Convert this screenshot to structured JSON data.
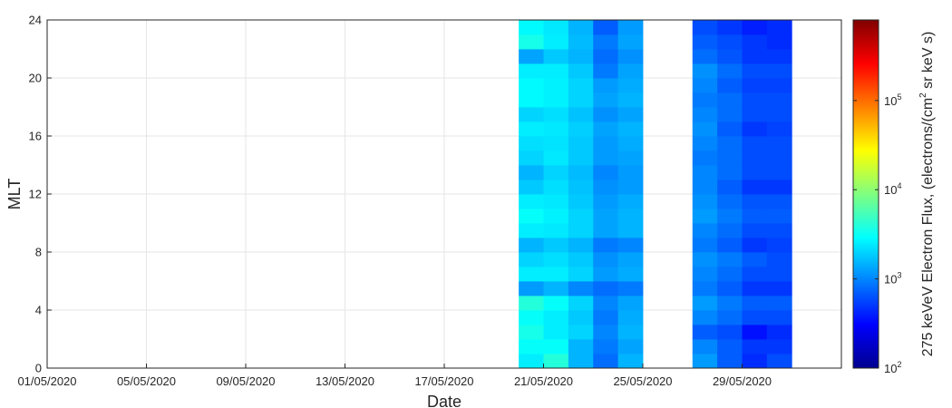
{
  "chart_data": {
    "type": "heatmap",
    "title": "",
    "xlabel": "Date",
    "ylabel": "MLT",
    "colorbar_label": "275 keVeV Electron Flux, (electrons/(cm",
    "colorbar_label_sup": "2",
    "colorbar_label_tail": " sr keV s)",
    "colormap": "jet",
    "color_scale": "log",
    "clim": [
      100,
      800000
    ],
    "grid": true,
    "x_tick_labels": [
      "01/05/2020",
      "05/05/2020",
      "09/05/2020",
      "13/05/2020",
      "17/05/2020",
      "21/05/2020",
      "25/05/2020",
      "29/05/2020"
    ],
    "x_tick_values": [
      "2020-05-01",
      "2020-05-05",
      "2020-05-09",
      "2020-05-13",
      "2020-05-17",
      "2020-05-21",
      "2020-05-25",
      "2020-05-29"
    ],
    "xlim": [
      "2020-05-01",
      "2020-06-02"
    ],
    "ylim": [
      0,
      24
    ],
    "y_ticks": [
      0,
      4,
      8,
      12,
      16,
      20,
      24
    ],
    "colorbar_ticks": [
      {
        "value": 100,
        "base": "10",
        "exp": "2"
      },
      {
        "value": 1000,
        "base": "10",
        "exp": "3"
      },
      {
        "value": 10000,
        "base": "10",
        "exp": "4"
      },
      {
        "value": 100000,
        "base": "10",
        "exp": "5"
      }
    ],
    "mlt_bin_hours": 1,
    "data_segments": [
      {
        "dates": [
          "2020-05-20",
          "2020-05-21",
          "2020-05-22",
          "2020-05-23",
          "2020-05-24"
        ],
        "flux_by_mlt": [
          [
            2500,
            4000,
            1500,
            800,
            1500
          ],
          [
            3000,
            3000,
            1500,
            900,
            1300
          ],
          [
            3500,
            2500,
            2000,
            1000,
            1500
          ],
          [
            3000,
            2500,
            1800,
            900,
            1400
          ],
          [
            4000,
            3000,
            2000,
            1000,
            1300
          ],
          [
            1200,
            1500,
            1000,
            800,
            900
          ],
          [
            2500,
            2500,
            2000,
            1200,
            1400
          ],
          [
            2000,
            2200,
            1800,
            1100,
            1300
          ],
          [
            1500,
            1800,
            1500,
            900,
            1000
          ],
          [
            2500,
            2400,
            2000,
            1300,
            1500
          ],
          [
            3000,
            2600,
            2000,
            1300,
            1500
          ],
          [
            2500,
            2400,
            1800,
            1200,
            1400
          ],
          [
            1800,
            2200,
            1700,
            1100,
            1200
          ],
          [
            1500,
            2000,
            1600,
            1000,
            1200
          ],
          [
            2000,
            2400,
            1800,
            1200,
            1300
          ],
          [
            2200,
            2300,
            1800,
            1200,
            1400
          ],
          [
            2500,
            2400,
            1900,
            1300,
            1500
          ],
          [
            2000,
            2200,
            1700,
            1100,
            1300
          ],
          [
            2800,
            2600,
            2000,
            1300,
            1500
          ],
          [
            2800,
            2600,
            2000,
            1200,
            1400
          ],
          [
            2500,
            2500,
            1800,
            900,
            1300
          ],
          [
            1300,
            1800,
            1500,
            800,
            1100
          ],
          [
            3500,
            2500,
            1600,
            900,
            1300
          ],
          [
            2800,
            2400,
            1500,
            700,
            1200
          ]
        ]
      },
      {
        "dates": [
          "2020-05-27",
          "2020-05-28",
          "2020-05-29",
          "2020-05-30"
        ],
        "flux_by_mlt": [
          [
            1200,
            700,
            450,
            600
          ],
          [
            1000,
            700,
            500,
            500
          ],
          [
            700,
            600,
            350,
            450
          ],
          [
            1000,
            800,
            600,
            600
          ],
          [
            1200,
            900,
            700,
            700
          ],
          [
            900,
            700,
            500,
            500
          ],
          [
            1000,
            800,
            600,
            600
          ],
          [
            1100,
            900,
            700,
            600
          ],
          [
            900,
            700,
            500,
            550
          ],
          [
            1000,
            800,
            600,
            600
          ],
          [
            1200,
            900,
            700,
            700
          ],
          [
            1100,
            800,
            650,
            650
          ],
          [
            1000,
            700,
            500,
            500
          ],
          [
            1000,
            800,
            600,
            600
          ],
          [
            900,
            800,
            600,
            600
          ],
          [
            1000,
            800,
            600,
            600
          ],
          [
            1100,
            700,
            500,
            550
          ],
          [
            1000,
            800,
            600,
            600
          ],
          [
            900,
            800,
            600,
            600
          ],
          [
            1000,
            700,
            550,
            550
          ],
          [
            1100,
            800,
            600,
            600
          ],
          [
            800,
            650,
            500,
            500
          ],
          [
            700,
            600,
            500,
            450
          ],
          [
            600,
            500,
            400,
            450
          ]
        ]
      }
    ]
  }
}
